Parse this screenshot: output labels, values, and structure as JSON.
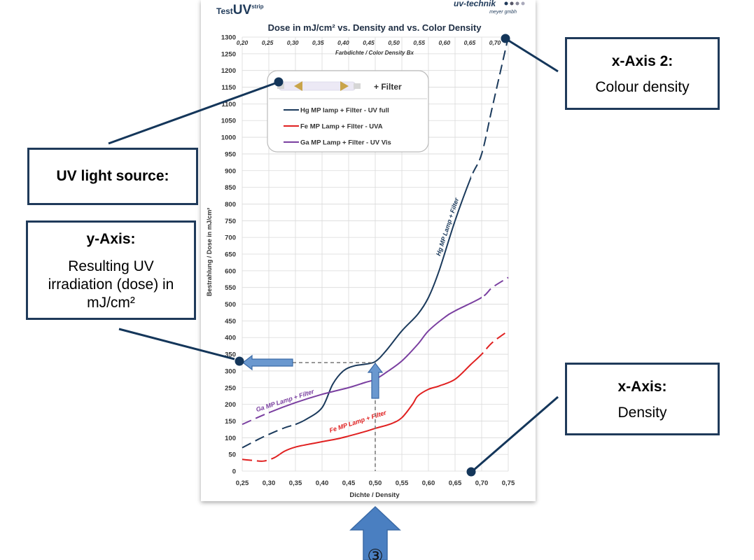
{
  "header": {
    "product_prefix": "Test",
    "product_uv": "UV",
    "product_sup": "strip",
    "brand": "uv-technik",
    "brand_sub": "meyer gmbh"
  },
  "chart_data": {
    "type": "line",
    "title": "Dose in mJ/cm² vs. Density and vs. Color Density",
    "xlabel": "Dichte / Density",
    "x2label": "Farbdichte / Color Density Bx",
    "ylabel": "Bestrahlung / Dose in mJ/cm²",
    "xlim": [
      0.25,
      0.75
    ],
    "ylim": [
      0,
      1300
    ],
    "x_ticks": [
      "0,25",
      "0,30",
      "0,35",
      "0,40",
      "0,45",
      "0,50",
      "0,55",
      "0,60",
      "0,65",
      "0,70",
      "0,75"
    ],
    "x2_ticks": [
      "0,20",
      "0,25",
      "0,30",
      "0,35",
      "0,40",
      "0,45",
      "0,50",
      "0,55",
      "0,60",
      "0,65",
      "0,70"
    ],
    "y_ticks": [
      "0",
      "50",
      "100",
      "150",
      "200",
      "250",
      "300",
      "350",
      "400",
      "450",
      "500",
      "550",
      "600",
      "650",
      "700",
      "750",
      "800",
      "850",
      "900",
      "950",
      "1000",
      "1050",
      "1100",
      "1150",
      "1200",
      "1250",
      "1300"
    ],
    "grid": true,
    "legend_position": "top-left",
    "legend_header": "+ Filter",
    "series": [
      {
        "name": "Hg MP lamp + Filter - UV full",
        "color": "#1b3a5c",
        "curve_label": "Hg MP Lamp + Filter",
        "x": [
          0.25,
          0.28,
          0.3,
          0.33,
          0.35,
          0.37,
          0.4,
          0.42,
          0.44,
          0.46,
          0.48,
          0.5,
          0.52,
          0.55,
          0.58,
          0.6,
          0.62,
          0.65,
          0.68,
          0.7,
          0.72,
          0.75
        ],
        "y": [
          70,
          95,
          110,
          130,
          140,
          155,
          190,
          260,
          300,
          315,
          320,
          328,
          360,
          420,
          470,
          520,
          600,
          750,
          880,
          950,
          1090,
          1300
        ]
      },
      {
        "name": "Fe MP Lamp + Filter - UVA",
        "color": "#e02020",
        "curve_label": "Fe MP Lamp + Filter",
        "x": [
          0.25,
          0.27,
          0.29,
          0.31,
          0.33,
          0.35,
          0.38,
          0.4,
          0.43,
          0.45,
          0.48,
          0.5,
          0.53,
          0.55,
          0.57,
          0.58,
          0.6,
          0.62,
          0.65,
          0.68,
          0.7,
          0.72,
          0.75
        ],
        "y": [
          35,
          32,
          30,
          40,
          60,
          72,
          82,
          88,
          97,
          105,
          118,
          128,
          142,
          160,
          200,
          225,
          245,
          255,
          275,
          320,
          350,
          385,
          420
        ]
      },
      {
        "name": "Ga MP Lamp + Filter - UV Vis",
        "color": "#7a3fa0",
        "curve_label": "Ga MP Lamp + Filter",
        "x": [
          0.25,
          0.3,
          0.35,
          0.4,
          0.45,
          0.48,
          0.5,
          0.52,
          0.55,
          0.58,
          0.6,
          0.63,
          0.65,
          0.7,
          0.72,
          0.75
        ],
        "y": [
          140,
          175,
          205,
          230,
          250,
          265,
          275,
          295,
          330,
          380,
          420,
          460,
          480,
          520,
          550,
          580
        ]
      }
    ],
    "reference": {
      "x": 0.5,
      "y": 325
    }
  },
  "step_marker": "③",
  "callouts": [
    {
      "id": "uv-light-source",
      "title": "UV light source:",
      "body": ""
    },
    {
      "id": "y-axis",
      "title": "y-Axis:",
      "body": "Resulting UV irradiation (dose) in mJ/cm²"
    },
    {
      "id": "x-axis-2",
      "title": "x-Axis 2:",
      "body": "Colour density"
    },
    {
      "id": "x-axis",
      "title": "x-Axis:",
      "body": "Density"
    }
  ]
}
